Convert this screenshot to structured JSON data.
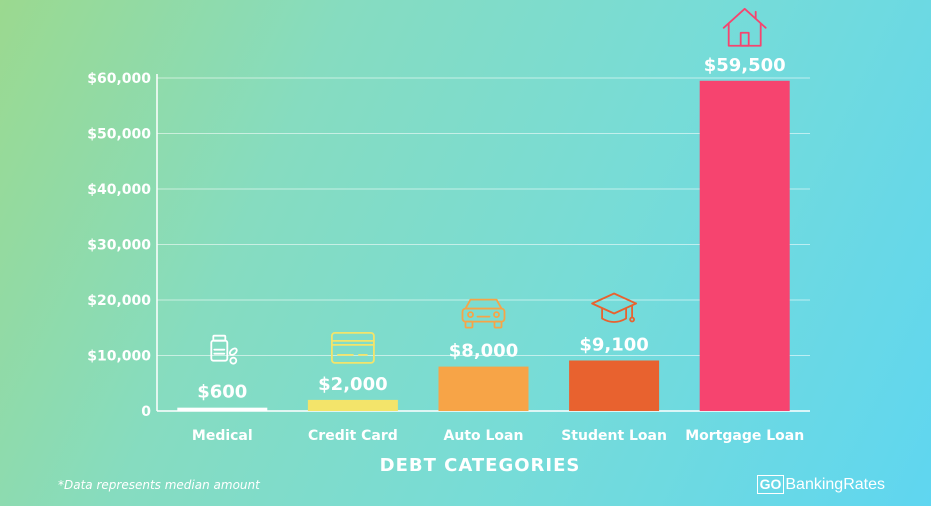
{
  "chart_data": {
    "type": "bar",
    "categories": [
      "Medical",
      "Credit Card",
      "Auto Loan",
      "Student Loan",
      "Mortgage Loan"
    ],
    "values": [
      600,
      2000,
      8000,
      9100,
      59500
    ],
    "value_labels": [
      "$600",
      "$2,000",
      "$8,000",
      "$9,100",
      "$59,500"
    ],
    "bar_colors": [
      "#ffffff",
      "#f3e46a",
      "#f7a447",
      "#e8622f",
      "#f6446f"
    ],
    "icons": [
      "medicine-bottle-icon",
      "credit-card-icon",
      "car-icon",
      "graduation-cap-icon",
      "house-icon"
    ],
    "xlabel": "DEBT CATEGORIES",
    "ylabel": "",
    "ylim": [
      0,
      60000
    ],
    "yticks": [
      0,
      10000,
      20000,
      30000,
      40000,
      50000,
      60000
    ],
    "ytick_labels": [
      "0",
      "$10,000",
      "$20,000",
      "$30,000",
      "$40,000",
      "$50,000",
      "$60,000"
    ],
    "grid": true
  },
  "footnote": "*Data represents median amount",
  "brand": {
    "box_text": "GO",
    "rest_text": "BankingRates"
  }
}
